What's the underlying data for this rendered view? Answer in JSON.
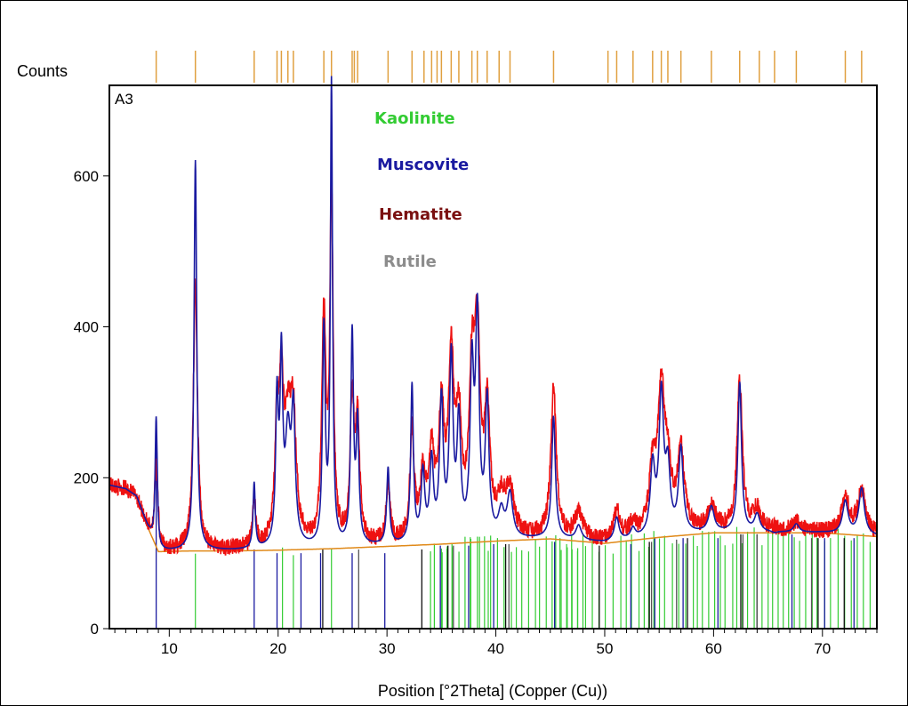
{
  "chart_data": {
    "type": "line",
    "panel_label": "A3",
    "ylabel": "Counts",
    "xlabel": "Position [°2Theta] (Copper (Cu))",
    "xlim": [
      4.5,
      75
    ],
    "ylim": [
      0,
      720
    ],
    "x_ticks": [
      10,
      20,
      30,
      40,
      50,
      60,
      70
    ],
    "y_ticks": [
      0,
      200,
      400,
      600
    ],
    "grid": false,
    "legend_position": "top-center",
    "legend": [
      {
        "name": "Kaolinite",
        "color": "#33cc33"
      },
      {
        "name": "Muscovite",
        "color": "#1a1aa0"
      },
      {
        "name": "Hematite",
        "color": "#7a1010"
      },
      {
        "name": "Rutile",
        "color": "#8c8c8c"
      }
    ],
    "colors": {
      "observed": "#ee1111",
      "calculated": "#1a1aa0",
      "background": "#e08a1a",
      "peak_marker": "#e0a040",
      "kaolinite": "#33cc33",
      "muscovite": "#1a1aa0",
      "hematite": "#111111",
      "rutile": "#555555"
    },
    "background_curve": {
      "x": [
        4.5,
        6,
        7,
        8,
        9,
        12,
        16,
        20,
        25,
        30,
        35,
        40,
        45,
        50,
        55,
        60,
        65,
        70,
        75
      ],
      "y": [
        190,
        185,
        175,
        135,
        102,
        103,
        103,
        104,
        106,
        109,
        112,
        116,
        119,
        113,
        121,
        127,
        127,
        127,
        122
      ]
    },
    "peaks": [
      {
        "x": 8.8,
        "calc": 280,
        "obs": 215,
        "width": 0.12
      },
      {
        "x": 12.4,
        "calc": 620,
        "obs": 460,
        "width": 0.15
      },
      {
        "x": 17.8,
        "calc": 190,
        "obs": 165,
        "width": 0.12
      },
      {
        "x": 19.9,
        "calc": 290,
        "obs": 245,
        "width": 0.15
      },
      {
        "x": 20.3,
        "calc": 335,
        "obs": 275,
        "width": 0.15
      },
      {
        "x": 20.9,
        "calc": 245,
        "obs": 250,
        "width": 0.3
      },
      {
        "x": 21.4,
        "calc": 270,
        "obs": 240,
        "width": 0.2
      },
      {
        "x": 24.2,
        "calc": 390,
        "obs": 400,
        "width": 0.15
      },
      {
        "x": 24.9,
        "calc": 715,
        "obs": 565,
        "width": 0.12
      },
      {
        "x": 26.8,
        "calc": 385,
        "obs": 290,
        "width": 0.15
      },
      {
        "x": 27.3,
        "calc": 265,
        "obs": 265,
        "width": 0.15
      },
      {
        "x": 30.1,
        "calc": 210,
        "obs": 185,
        "width": 0.15
      },
      {
        "x": 32.3,
        "calc": 318,
        "obs": 255,
        "width": 0.15
      },
      {
        "x": 33.3,
        "calc": 200,
        "obs": 190,
        "width": 0.2
      },
      {
        "x": 34.1,
        "calc": 215,
        "obs": 215,
        "width": 0.2
      },
      {
        "x": 35.0,
        "calc": 295,
        "obs": 275,
        "width": 0.2
      },
      {
        "x": 35.9,
        "calc": 350,
        "obs": 340,
        "width": 0.2
      },
      {
        "x": 36.6,
        "calc": 265,
        "obs": 255,
        "width": 0.2
      },
      {
        "x": 37.8,
        "calc": 330,
        "obs": 310,
        "width": 0.2
      },
      {
        "x": 38.3,
        "calc": 400,
        "obs": 360,
        "width": 0.2
      },
      {
        "x": 39.2,
        "calc": 295,
        "obs": 275,
        "width": 0.2
      },
      {
        "x": 40.5,
        "calc": 150,
        "obs": 160,
        "width": 0.3
      },
      {
        "x": 41.3,
        "calc": 175,
        "obs": 175,
        "width": 0.3
      },
      {
        "x": 45.3,
        "calc": 280,
        "obs": 315,
        "width": 0.2
      },
      {
        "x": 47.6,
        "calc": 135,
        "obs": 150,
        "width": 0.3
      },
      {
        "x": 51.1,
        "calc": 145,
        "obs": 150,
        "width": 0.25
      },
      {
        "x": 52.6,
        "calc": 130,
        "obs": 135,
        "width": 0.25
      },
      {
        "x": 54.4,
        "calc": 210,
        "obs": 200,
        "width": 0.25
      },
      {
        "x": 55.2,
        "calc": 305,
        "obs": 300,
        "width": 0.25
      },
      {
        "x": 55.8,
        "calc": 205,
        "obs": 195,
        "width": 0.25
      },
      {
        "x": 57.0,
        "calc": 235,
        "obs": 230,
        "width": 0.25
      },
      {
        "x": 59.8,
        "calc": 160,
        "obs": 160,
        "width": 0.3
      },
      {
        "x": 62.4,
        "calc": 325,
        "obs": 325,
        "width": 0.2
      },
      {
        "x": 64.0,
        "calc": 150,
        "obs": 155,
        "width": 0.3
      },
      {
        "x": 65.6,
        "calc": 125,
        "obs": 130,
        "width": 0.3
      },
      {
        "x": 67.6,
        "calc": 138,
        "obs": 140,
        "width": 0.3
      },
      {
        "x": 72.1,
        "calc": 168,
        "obs": 170,
        "width": 0.3
      },
      {
        "x": 73.6,
        "calc": 185,
        "obs": 180,
        "width": 0.3
      }
    ],
    "top_markers": [
      8.8,
      12.4,
      17.8,
      19.9,
      20.3,
      20.9,
      21.4,
      24.2,
      24.9,
      26.8,
      27.0,
      27.3,
      30.1,
      32.3,
      33.4,
      34.1,
      34.6,
      35.0,
      35.9,
      36.6,
      37.8,
      38.3,
      39.2,
      40.3,
      41.3,
      45.3,
      50.3,
      51.1,
      52.6,
      54.4,
      55.2,
      55.8,
      57.0,
      59.8,
      62.4,
      64.2,
      65.6,
      67.6,
      72.1,
      73.6
    ],
    "reference_lines": {
      "muscovite": [
        {
          "x": 8.8,
          "h": 245
        },
        {
          "x": 17.8,
          "h": 105
        },
        {
          "x": 19.9,
          "h": 100
        },
        {
          "x": 22.1,
          "h": 100
        },
        {
          "x": 23.9,
          "h": 100
        },
        {
          "x": 26.8,
          "h": 100
        },
        {
          "x": 29.8,
          "h": 100
        },
        {
          "x": 34.9,
          "h": 110
        },
        {
          "x": 37.5,
          "h": 110
        },
        {
          "x": 39.8,
          "h": 112
        },
        {
          "x": 45.4,
          "h": 115
        },
        {
          "x": 52.4,
          "h": 112
        },
        {
          "x": 54.6,
          "h": 120
        },
        {
          "x": 57.2,
          "h": 120
        },
        {
          "x": 60.4,
          "h": 120
        },
        {
          "x": 64.0,
          "h": 125
        },
        {
          "x": 67.2,
          "h": 125
        },
        {
          "x": 70.2,
          "h": 120
        },
        {
          "x": 72.9,
          "h": 120
        }
      ],
      "hematite": [
        {
          "x": 24.1,
          "h": 105
        },
        {
          "x": 33.2,
          "h": 105
        },
        {
          "x": 35.6,
          "h": 110
        },
        {
          "x": 40.9,
          "h": 112
        },
        {
          "x": 49.5,
          "h": 110
        },
        {
          "x": 54.1,
          "h": 115
        },
        {
          "x": 57.6,
          "h": 120
        },
        {
          "x": 62.5,
          "h": 125
        },
        {
          "x": 64.0,
          "h": 125
        },
        {
          "x": 69.6,
          "h": 120
        },
        {
          "x": 72.0,
          "h": 120
        }
      ],
      "rutile": [
        {
          "x": 27.4,
          "h": 105
        },
        {
          "x": 36.1,
          "h": 110
        },
        {
          "x": 41.2,
          "h": 112
        },
        {
          "x": 54.3,
          "h": 115
        },
        {
          "x": 56.6,
          "h": 118
        },
        {
          "x": 62.7,
          "h": 125
        },
        {
          "x": 64.0,
          "h": 125
        },
        {
          "x": 69.0,
          "h": 120
        }
      ]
    }
  }
}
